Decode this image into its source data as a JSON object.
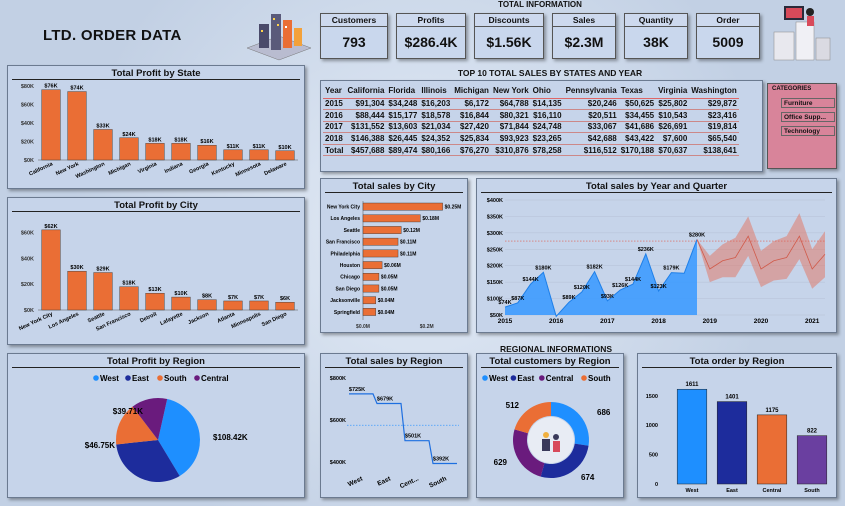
{
  "header": {
    "title": "LTD. ORDER DATA",
    "total_info_label": "TOTAL INFORMATION",
    "regional_label": "REGIONAL INFORMATIONS"
  },
  "kpis": [
    {
      "label": "Customers",
      "value": "793"
    },
    {
      "label": "Profits",
      "value": "$286.4K"
    },
    {
      "label": "Discounts",
      "value": "$1.56K"
    },
    {
      "label": "Sales",
      "value": "$2.3M"
    },
    {
      "label": "Quantity",
      "value": "38K"
    },
    {
      "label": "Order",
      "value": "5009"
    }
  ],
  "colors": {
    "orange": "#ea6e35",
    "blue": "#1e8fff",
    "navy": "#1d2c9c",
    "purple": "#6a1b7d",
    "violet": "#6a3fa0",
    "pink": "#d8849a"
  },
  "categories": {
    "title": "CATEGORIES",
    "items": [
      "Furniture",
      "Office Supp...",
      "Technology"
    ]
  },
  "top10": {
    "title": "TOP 10 TOTAL SALES BY STATES AND YEAR",
    "columns": [
      "Year",
      "California",
      "Florida",
      "Illinois",
      "Michigan",
      "New York",
      "Ohio",
      "Pennsylvania",
      "Texas",
      "Virginia",
      "Washington"
    ],
    "rows": [
      [
        "2015",
        "$91,304",
        "$34,248",
        "$16,203",
        "$6,172",
        "$64,788",
        "$14,135",
        "$20,246",
        "$50,625",
        "$25,802",
        "$29,872"
      ],
      [
        "2016",
        "$88,444",
        "$15,177",
        "$18,578",
        "$16,844",
        "$80,321",
        "$16,110",
        "$20,511",
        "$34,455",
        "$10,543",
        "$23,416"
      ],
      [
        "2017",
        "$131,552",
        "$13,603",
        "$21,034",
        "$27,420",
        "$71,844",
        "$24,748",
        "$33,067",
        "$41,686",
        "$26,691",
        "$19,814"
      ],
      [
        "2018",
        "$146,388",
        "$26,445",
        "$24,352",
        "$25,834",
        "$93,923",
        "$23,265",
        "$42,688",
        "$43,422",
        "$7,600",
        "$65,540"
      ],
      [
        "Total",
        "$457,688",
        "$89,474",
        "$80,166",
        "$76,270",
        "$310,876",
        "$78,258",
        "$116,512",
        "$170,188",
        "$70,637",
        "$138,641"
      ]
    ]
  },
  "chart_data": [
    {
      "id": "profit_by_state",
      "type": "bar",
      "title": "Total Profit by State",
      "categories": [
        "California",
        "New York",
        "Washington",
        "Michigan",
        "Virginia",
        "Indiana",
        "Georgia",
        "Kentucky",
        "Minnesota",
        "Delaware"
      ],
      "values": [
        76,
        74,
        33,
        24,
        18,
        18,
        16,
        11,
        11,
        10
      ],
      "labels": [
        "$76K",
        "$74K",
        "$33K",
        "$24K",
        "$18K",
        "$18K",
        "$16K",
        "$11K",
        "$11K",
        "$10K"
      ],
      "yticks": [
        "$0K",
        "$20K",
        "$40K",
        "$60K",
        "$80K"
      ],
      "ylim": [
        0,
        80
      ]
    },
    {
      "id": "profit_by_city",
      "type": "bar",
      "title": "Total Profit by City",
      "categories": [
        "New York City",
        "Los Angeles",
        "Seattle",
        "San Francisco",
        "Detroit",
        "Lafayette",
        "Jackson",
        "Atlanta",
        "Minneapolis",
        "San Diego"
      ],
      "values": [
        62,
        30,
        29,
        18,
        13,
        10,
        8,
        7,
        7,
        6
      ],
      "labels": [
        "$62K",
        "$30K",
        "$29K",
        "$18K",
        "$13K",
        "$10K",
        "$8K",
        "$7K",
        "$7K",
        "$6K"
      ],
      "yticks": [
        "$0K",
        "$20K",
        "$40K",
        "$60K"
      ],
      "ylim": [
        0,
        65
      ]
    },
    {
      "id": "sales_by_city",
      "type": "bar",
      "title": "Total sales by City",
      "categories": [
        "New York City",
        "Los Angeles",
        "Seattle",
        "San Francisco",
        "Philadelphia",
        "Houston",
        "Chicago",
        "San Diego",
        "Jacksonville",
        "Springfield"
      ],
      "values": [
        0.25,
        0.18,
        0.12,
        0.11,
        0.11,
        0.06,
        0.05,
        0.05,
        0.04,
        0.04
      ],
      "labels": [
        "$0.25M",
        "$0.18M",
        "$0.12M",
        "$0.11M",
        "$0.11M",
        "$0.06M",
        "$0.05M",
        "$0.05M",
        "$0.04M",
        "$0.04M"
      ],
      "xticks": [
        "$0.0M",
        "$0.2M"
      ],
      "xlim": [
        0,
        0.27
      ]
    },
    {
      "id": "sales_by_year_quarter",
      "type": "area",
      "title": "Total sales by Year and Quarter",
      "x": [
        2015.0,
        2015.25,
        2015.5,
        2015.75,
        2016.0,
        2016.25,
        2016.5,
        2016.75,
        2017.0,
        2017.25,
        2017.5,
        2017.75,
        2018.0,
        2018.25,
        2018.5,
        2018.75
      ],
      "values": [
        74,
        87,
        144,
        180,
        46,
        89,
        120,
        182,
        93,
        126,
        144,
        236,
        123,
        179,
        177,
        280
      ],
      "point_labels": [
        "$74K",
        "$87K",
        "$144K",
        "$180K",
        "",
        "$89K",
        "$120K",
        "$182K",
        "$93K",
        "$126K",
        "$144K",
        "$236K",
        "$123K",
        "$179K",
        "",
        "$280K"
      ],
      "forecast_x": [
        2018.75,
        2019.0,
        2019.25,
        2019.5,
        2019.75,
        2020.0,
        2020.25,
        2020.5,
        2020.75,
        2021.0,
        2021.25
      ],
      "forecast_mid": [
        280,
        190,
        215,
        225,
        290,
        190,
        215,
        225,
        290,
        190,
        235
      ],
      "forecast_spread": [
        0,
        40,
        50,
        60,
        60,
        55,
        60,
        65,
        70,
        60,
        70
      ],
      "yticks": [
        "$50K",
        "$100K",
        "$150K",
        "$200K",
        "$250K",
        "$300K",
        "$350K",
        "$400K"
      ],
      "ylim": [
        50,
        400
      ],
      "xticks": [
        "2015",
        "2016",
        "2017",
        "2018",
        "2019",
        "2020",
        "2021"
      ],
      "xlim": [
        2015,
        2021.25
      ],
      "reference": 275
    },
    {
      "id": "profit_by_region",
      "type": "pie",
      "title": "Total Profit by Region",
      "categories": [
        "West",
        "East",
        "South",
        "Central"
      ],
      "values": [
        108.42,
        91.52,
        46.75,
        39.71
      ],
      "labels": [
        "$108.42K",
        "$91.52K",
        "$46.75K",
        "$39.71K"
      ],
      "colors": [
        "#1e8fff",
        "#1d2c9c",
        "#ea6e35",
        "#6a1b7d"
      ]
    },
    {
      "id": "sales_by_region",
      "type": "line",
      "title": "Total sales by Region",
      "categories": [
        "West",
        "East",
        "Cent...",
        "South"
      ],
      "values": [
        725,
        679,
        501,
        392
      ],
      "labels": [
        "$725K",
        "$679K",
        "$501K",
        "$392K"
      ],
      "yticks": [
        "$400K",
        "$600K",
        "$800K"
      ],
      "ylim": [
        380,
        820
      ],
      "reference": 575
    },
    {
      "id": "customers_by_region",
      "type": "pie",
      "title": "Total customers by Region",
      "categories": [
        "West",
        "East",
        "Central",
        "South"
      ],
      "values": [
        686,
        674,
        629,
        512
      ],
      "labels": [
        "686",
        "674",
        "629",
        "512"
      ],
      "colors": [
        "#1e8fff",
        "#1d2c9c",
        "#6a1b7d",
        "#ea6e35"
      ]
    },
    {
      "id": "order_by_region",
      "type": "bar",
      "title": "Tota order by Region",
      "categories": [
        "West",
        "East",
        "Central",
        "South"
      ],
      "values": [
        1611,
        1401,
        1175,
        822
      ],
      "labels": [
        "1611",
        "1401",
        "1175",
        "822"
      ],
      "colors": [
        "#1e8fff",
        "#1d2c9c",
        "#ea6e35",
        "#6a3fa0"
      ],
      "yticks": [
        "0",
        "500",
        "1000",
        "1500"
      ],
      "ylim": [
        0,
        1700
      ]
    }
  ]
}
